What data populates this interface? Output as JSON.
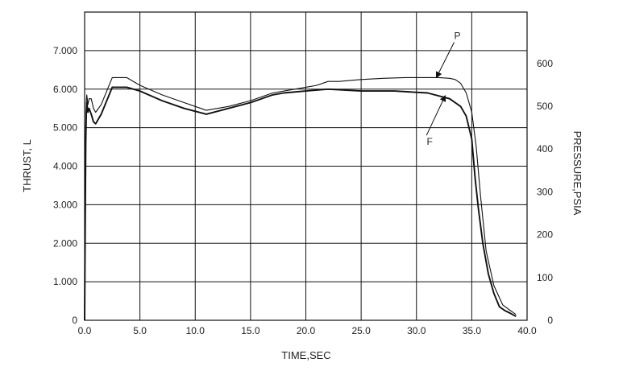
{
  "chart_data": {
    "type": "line",
    "xlabel": "TIME,SEC",
    "ylabel_left": "THRUST, L",
    "ylabel_right": "PRESSURE,PSIA",
    "xlim": [
      0,
      40
    ],
    "ylim_left": [
      0,
      8000
    ],
    "ylim_right": [
      0,
      720
    ],
    "grid": true,
    "x_ticks": [
      "0.0",
      "5.0",
      "10.0",
      "15.0",
      "20.0",
      "25.0",
      "30.0",
      "35.0",
      "40.0"
    ],
    "y_left_ticks": [
      "0",
      "1.000",
      "2.000",
      "3.000",
      "4.000",
      "5.000",
      "6.000",
      "7.000"
    ],
    "y_right_ticks": [
      "0",
      "100",
      "200",
      "300",
      "400",
      "500",
      "600"
    ],
    "series": [
      {
        "name": "P",
        "x": [
          0.0,
          0.05,
          0.1,
          0.15,
          0.2,
          0.3,
          0.4,
          0.6,
          0.8,
          1.0,
          1.5,
          2.5,
          3.8,
          5.0,
          7.0,
          9.0,
          11.0,
          13.0,
          15.0,
          17.0,
          19.0,
          20.0,
          21.0,
          22.0,
          23.0,
          25.0,
          27.0,
          29.0,
          31.0,
          32.0,
          33.0,
          33.5,
          34.0,
          34.5,
          35.0,
          35.4,
          35.8,
          36.3,
          37.0,
          37.8,
          38.5,
          39.0
        ],
        "y": [
          0,
          2800,
          5000,
          5700,
          5850,
          5600,
          5750,
          5750,
          5500,
          5400,
          5600,
          6300,
          6300,
          6100,
          5850,
          5650,
          5450,
          5550,
          5700,
          5900,
          6000,
          6050,
          6100,
          6200,
          6200,
          6250,
          6280,
          6300,
          6300,
          6300,
          6280,
          6250,
          6150,
          5900,
          5400,
          4500,
          3200,
          1800,
          900,
          400,
          250,
          150
        ]
      },
      {
        "name": "F",
        "x": [
          0.0,
          0.05,
          0.1,
          0.15,
          0.2,
          0.3,
          0.4,
          0.6,
          0.8,
          1.0,
          1.5,
          2.5,
          3.8,
          5.0,
          7.0,
          9.0,
          11.0,
          13.0,
          15.0,
          17.0,
          18.0,
          20.0,
          22.0,
          25.0,
          28.0,
          31.0,
          33.0,
          34.0,
          34.5,
          35.0,
          35.3,
          35.6,
          36.0,
          36.5,
          37.0,
          37.5,
          38.0,
          38.5,
          39.0
        ],
        "y": [
          0,
          2400,
          4600,
          5400,
          5650,
          5400,
          5500,
          5350,
          5150,
          5100,
          5350,
          6050,
          6050,
          5950,
          5700,
          5500,
          5350,
          5500,
          5650,
          5850,
          5900,
          5950,
          6000,
          5950,
          5950,
          5900,
          5750,
          5550,
          5300,
          4700,
          3700,
          2900,
          2000,
          1200,
          700,
          350,
          250,
          180,
          100
        ]
      }
    ],
    "annotations": [
      {
        "label": "P",
        "text_x": 33.7,
        "text_y": 7300,
        "arrow_to_x": 31.8,
        "arrow_to_y": 6300
      },
      {
        "label": "F",
        "text_x": 31.2,
        "text_y": 4550,
        "arrow_to_x": 32.6,
        "arrow_to_y": 5830
      }
    ]
  }
}
